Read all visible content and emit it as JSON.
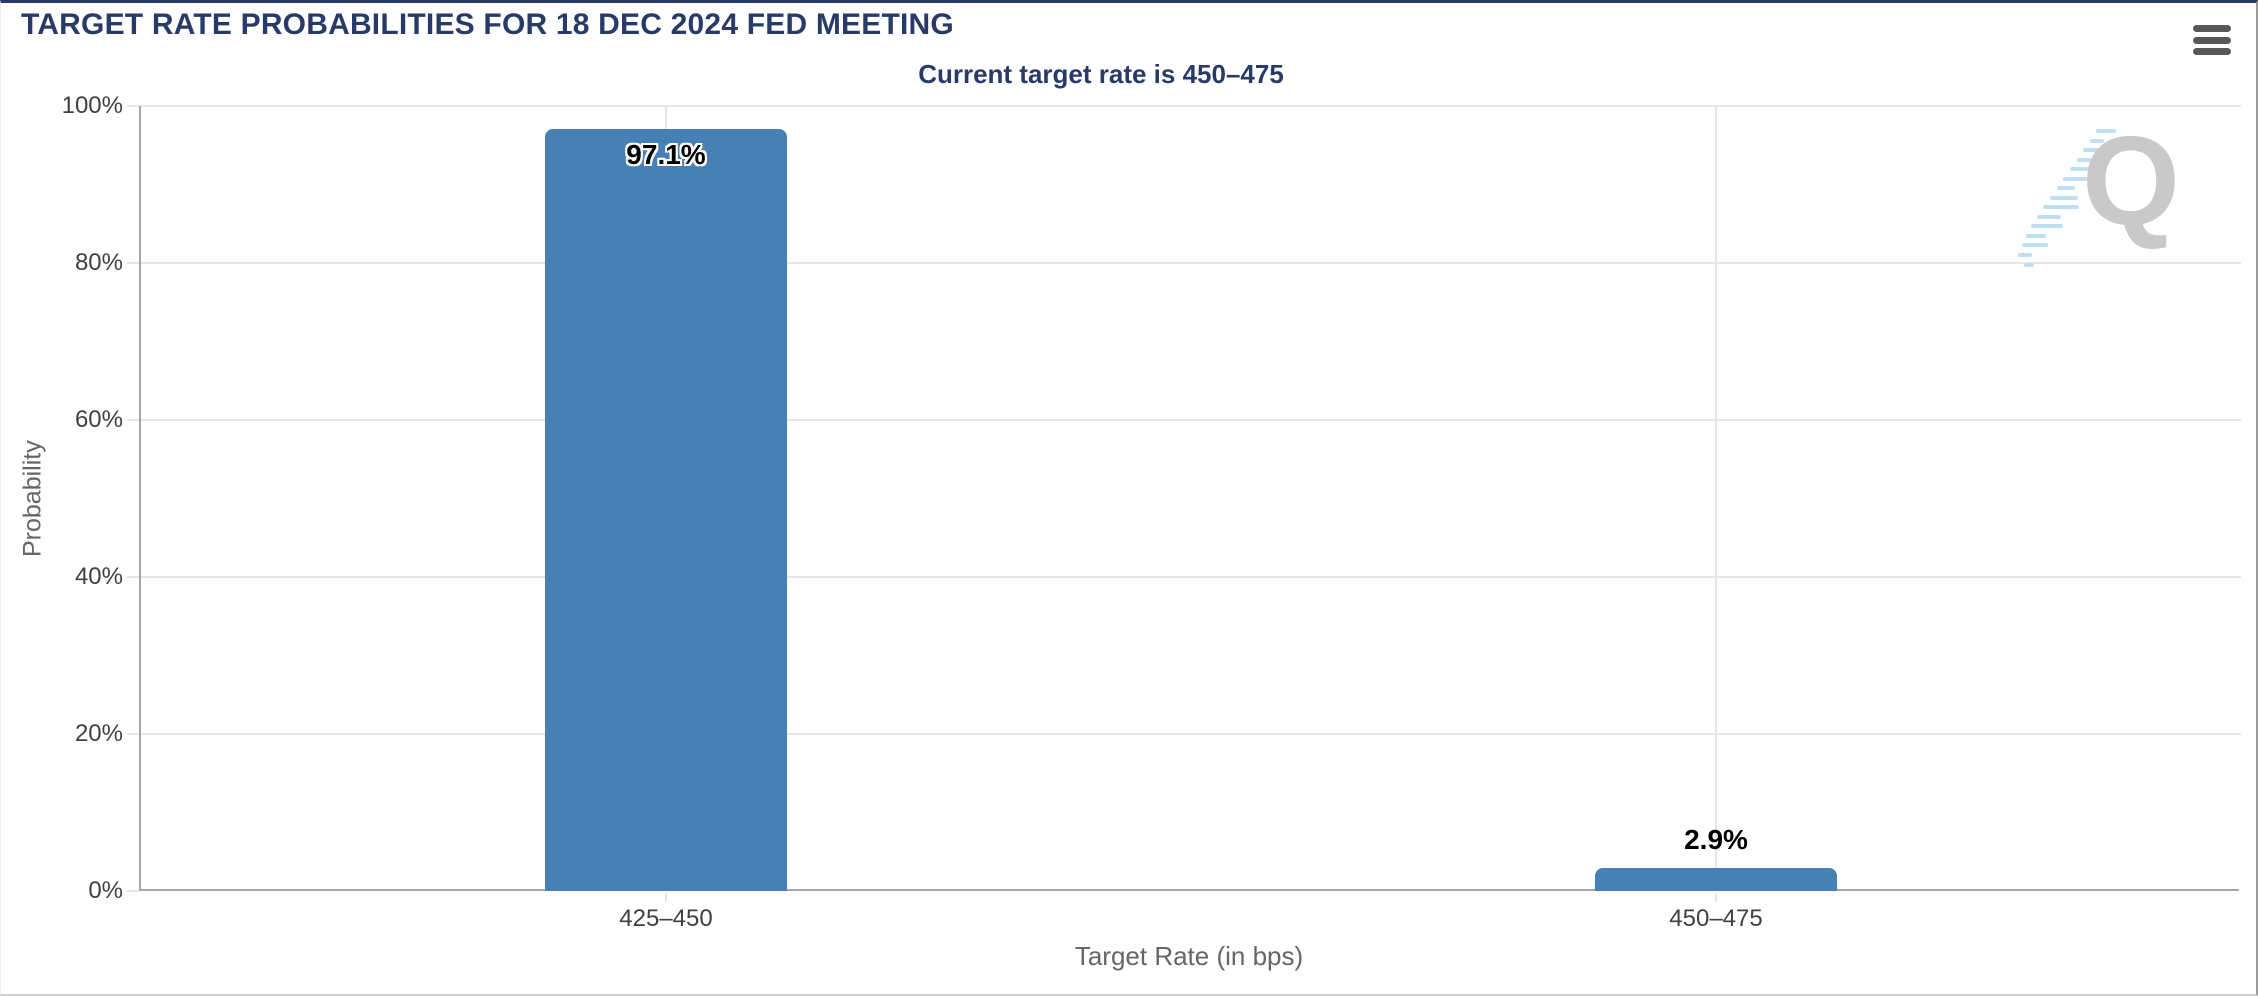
{
  "header": {
    "title": "TARGET RATE PROBABILITIES FOR 18 DEC 2024 FED MEETING",
    "menu_icon": "hamburger-icon"
  },
  "subtitle": "Current target rate is 450–475",
  "watermark_letter": "Q",
  "colors": {
    "accent_navy": "#283a68",
    "bar": "#4680b4",
    "grid": "#e6e6e6",
    "axis": "#a6a6a6",
    "axis_text": "#666666",
    "tick_text": "#404040",
    "label_text": "#000000",
    "watermark_gray": "#c9c9c9",
    "watermark_blue": "#bfe0f4",
    "menu_icon": "#58585a",
    "border_right": "#9a9a9a",
    "border_bottom": "#cfcfcf"
  },
  "chart_data": {
    "type": "bar",
    "title": "TARGET RATE PROBABILITIES FOR 18 DEC 2024 FED MEETING",
    "subtitle": "Current target rate is 450–475",
    "categories": [
      "425–450",
      "450–475"
    ],
    "values": [
      97.1,
      2.9
    ],
    "data_labels": [
      "97.1%",
      "2.9%"
    ],
    "xlabel": "Target Rate (in bps)",
    "ylabel": "Probability",
    "ylim": [
      0,
      100
    ],
    "yticks": [
      0,
      20,
      40,
      60,
      80,
      100
    ],
    "ytick_labels": [
      "0%",
      "20%",
      "40%",
      "60%",
      "80%",
      "100%"
    ],
    "grid": true,
    "legend": false,
    "bar_color": "#4680b4"
  }
}
